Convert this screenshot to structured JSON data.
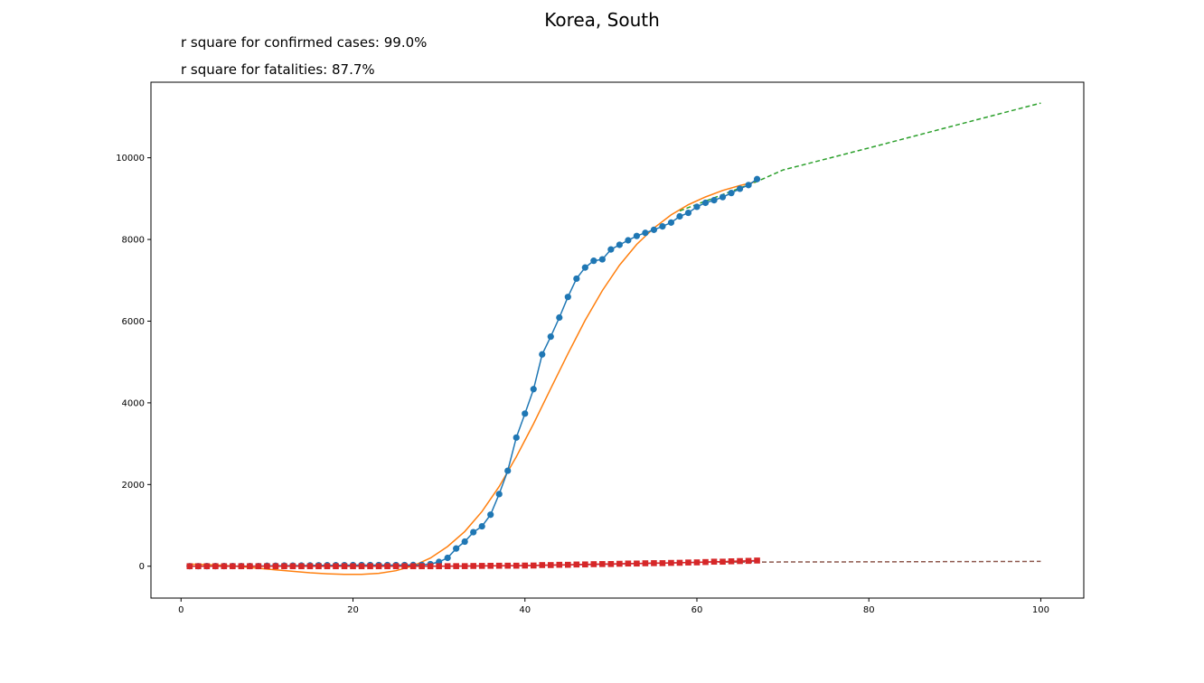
{
  "chart_data": {
    "type": "line",
    "title": "Korea, South",
    "annotations": [
      "r square for confirmed cases: 99.0%",
      "r square for fatalities: 87.7%"
    ],
    "xlabel": "",
    "ylabel": "",
    "xlim": [
      -3.5,
      105
    ],
    "ylim": [
      -780,
      11850
    ],
    "xticks": [
      0,
      20,
      40,
      60,
      80,
      100
    ],
    "yticks": [
      0,
      2000,
      4000,
      6000,
      8000,
      10000
    ],
    "grid": false,
    "colors": {
      "confirmed": "#1f77b4",
      "confirmed_fit": "#ff7f0e",
      "confirmed_projection": "#2ca02c",
      "fatalities": "#d62728",
      "fatalities_fit": "#9467bd",
      "fatalities_projection": "#8c564b"
    },
    "series": [
      {
        "role": "confirmed",
        "marker": "circle",
        "x": [
          1,
          2,
          3,
          4,
          5,
          6,
          7,
          8,
          9,
          10,
          11,
          12,
          13,
          14,
          15,
          16,
          17,
          18,
          19,
          20,
          21,
          22,
          23,
          24,
          25,
          26,
          27,
          28,
          29,
          30,
          31,
          32,
          33,
          34,
          35,
          36,
          37,
          38,
          39,
          40,
          41,
          42,
          43,
          44,
          45,
          46,
          47,
          48,
          49,
          50,
          51,
          52,
          53,
          54,
          55,
          56,
          57,
          58,
          59,
          60,
          61,
          62,
          63,
          64,
          65,
          66,
          67
        ],
        "values": [
          1,
          1,
          2,
          2,
          3,
          4,
          4,
          4,
          4,
          11,
          12,
          15,
          15,
          16,
          19,
          23,
          24,
          24,
          25,
          27,
          28,
          28,
          28,
          28,
          28,
          29,
          30,
          31,
          51,
          104,
          204,
          433,
          602,
          833,
          977,
          1261,
          1766,
          2337,
          3150,
          3736,
          4335,
          5186,
          5621,
          6088,
          6593,
          7041,
          7313,
          7478,
          7513,
          7755,
          7869,
          7979,
          8086,
          8162,
          8236,
          8320,
          8413,
          8565,
          8652,
          8799,
          8897,
          8961,
          9037,
          9137,
          9241,
          9332,
          9478
        ]
      },
      {
        "role": "confirmed_fit",
        "marker": "none",
        "x": [
          1,
          3,
          5,
          7,
          9,
          11,
          13,
          15,
          17,
          19,
          21,
          23,
          25,
          27,
          29,
          31,
          33,
          35,
          37,
          39,
          41,
          43,
          45,
          47,
          49,
          51,
          53,
          55,
          57,
          59,
          61,
          63,
          65,
          67
        ],
        "values": [
          50,
          40,
          20,
          -10,
          -50,
          -90,
          -125,
          -160,
          -185,
          -200,
          -200,
          -175,
          -110,
          10,
          200,
          480,
          850,
          1340,
          1950,
          2680,
          3490,
          4350,
          5200,
          6020,
          6750,
          7370,
          7880,
          8280,
          8600,
          8850,
          9040,
          9200,
          9320,
          9420
        ]
      },
      {
        "role": "confirmed_projection",
        "marker": "none",
        "linestyle": "dashed",
        "x": [
          58,
          67,
          70,
          80,
          90,
          100
        ],
        "values": [
          8700,
          9420,
          9700,
          10240,
          10790,
          11340
        ]
      },
      {
        "role": "fatalities",
        "marker": "square",
        "x": [
          1,
          2,
          3,
          4,
          5,
          6,
          7,
          8,
          9,
          10,
          11,
          12,
          13,
          14,
          15,
          16,
          17,
          18,
          19,
          20,
          21,
          22,
          23,
          24,
          25,
          26,
          27,
          28,
          29,
          30,
          31,
          32,
          33,
          34,
          35,
          36,
          37,
          38,
          39,
          40,
          41,
          42,
          43,
          44,
          45,
          46,
          47,
          48,
          49,
          50,
          51,
          52,
          53,
          54,
          55,
          56,
          57,
          58,
          59,
          60,
          61,
          62,
          63,
          64,
          65,
          66,
          67
        ],
        "values": [
          0,
          0,
          0,
          0,
          0,
          0,
          0,
          0,
          0,
          0,
          0,
          0,
          0,
          0,
          0,
          0,
          0,
          0,
          0,
          0,
          0,
          0,
          0,
          0,
          0,
          0,
          0,
          0,
          0,
          0,
          1,
          2,
          2,
          6,
          8,
          10,
          12,
          13,
          13,
          16,
          17,
          28,
          28,
          35,
          35,
          42,
          44,
          50,
          53,
          54,
          60,
          66,
          66,
          72,
          75,
          75,
          81,
          84,
          91,
          94,
          102,
          111,
          111,
          120,
          126,
          131,
          139
        ]
      },
      {
        "role": "fatalities_fit",
        "marker": "none",
        "x": [
          1,
          10,
          20,
          30,
          40,
          50,
          60,
          67
        ],
        "values": [
          0,
          0,
          1,
          3,
          15,
          50,
          95,
          120
        ]
      },
      {
        "role": "fatalities_projection",
        "marker": "none",
        "linestyle": "dashed",
        "x": [
          60,
          67,
          80,
          100
        ],
        "values": [
          100,
          102,
          108,
          118
        ]
      }
    ]
  }
}
